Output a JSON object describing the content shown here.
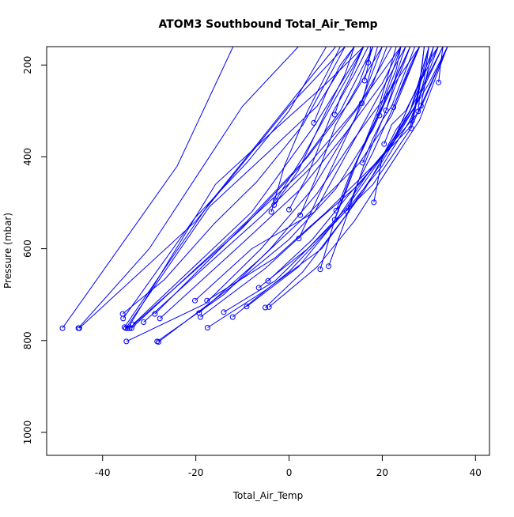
{
  "chart_data": {
    "type": "line",
    "title": "ATOM3 Southbound Total_Air_Temp",
    "xlabel": "Total_Air_Temp",
    "ylabel": "Pressure (mbar)",
    "xlim": [
      -52,
      43
    ],
    "ylim": [
      1050,
      160
    ],
    "y_reversed": true,
    "xticks": [
      -40,
      -20,
      0,
      20,
      40
    ],
    "yticks": [
      200,
      400,
      600,
      800,
      1000
    ],
    "grid": false,
    "marker": "open-circle",
    "color": "#0000ff",
    "series": [
      {
        "points": [
          [
            -48.6,
            773
          ],
          [
            -24,
            420
          ],
          [
            -12,
            160
          ]
        ]
      },
      {
        "points": [
          [
            -45.2,
            773
          ],
          [
            -30,
            600
          ],
          [
            -10,
            290
          ],
          [
            2,
            160
          ]
        ]
      },
      {
        "points": [
          [
            -45,
            773
          ],
          [
            -20,
            540
          ],
          [
            0,
            290
          ],
          [
            12,
            160
          ]
        ]
      },
      {
        "points": [
          [
            -35.7,
            742
          ],
          [
            -26.7,
            667
          ],
          [
            -16,
            545
          ],
          [
            -7,
            455
          ],
          [
            3,
            330
          ],
          [
            12,
            160
          ]
        ]
      },
      {
        "points": [
          [
            -35.6,
            752
          ],
          [
            -20.3,
            534
          ],
          [
            -9,
            412
          ],
          [
            0,
            300
          ],
          [
            8,
            160
          ]
        ]
      },
      {
        "points": [
          [
            -35.3,
            771
          ],
          [
            -17.3,
            504
          ],
          [
            -7,
            374
          ],
          [
            2,
            260
          ],
          [
            10,
            160
          ]
        ]
      },
      {
        "points": [
          [
            -35,
            773
          ],
          [
            -17.1,
            509
          ],
          [
            -5,
            395
          ],
          [
            6,
            290
          ],
          [
            14,
            160
          ]
        ]
      },
      {
        "points": [
          [
            -34.6,
            773
          ],
          [
            -15.8,
            460
          ],
          [
            -3,
            340
          ],
          [
            8,
            240
          ],
          [
            16,
            160
          ]
        ]
      },
      {
        "points": [
          [
            -34.9,
            802
          ],
          [
            -18,
            720
          ],
          [
            -6,
            600
          ],
          [
            5,
            470
          ],
          [
            14,
            320
          ],
          [
            20,
            160
          ]
        ]
      },
      {
        "points": [
          [
            -34.2,
            773
          ],
          [
            -10,
            555
          ],
          [
            1.9,
            426
          ],
          [
            11,
            300
          ],
          [
            18,
            160
          ]
        ]
      },
      {
        "points": [
          [
            -33.8,
            773
          ],
          [
            -9,
            540
          ],
          [
            4,
            400
          ],
          [
            13,
            280
          ],
          [
            20,
            160
          ]
        ]
      },
      {
        "points": [
          [
            -33.5,
            765
          ],
          [
            -8,
            520
          ],
          [
            5.6,
            330
          ],
          [
            16,
            160
          ]
        ]
      },
      {
        "points": [
          [
            -31.2,
            760
          ],
          [
            -6,
            530
          ],
          [
            6,
            410
          ],
          [
            15,
            290
          ],
          [
            22,
            160
          ]
        ]
      },
      {
        "points": [
          [
            -28.8,
            742
          ],
          [
            -10,
            552
          ],
          [
            3,
            430
          ],
          [
            14,
            300
          ],
          [
            24,
            160
          ]
        ]
      },
      {
        "points": [
          [
            -28.3,
            802
          ],
          [
            -14,
            700
          ],
          [
            -4,
            600
          ],
          [
            6,
            480
          ],
          [
            14,
            360
          ],
          [
            22,
            250
          ],
          [
            28,
            160
          ]
        ]
      },
      {
        "points": [
          [
            -28,
            803
          ],
          [
            -12,
            680
          ],
          [
            0,
            580
          ],
          [
            10,
            470
          ],
          [
            18,
            340
          ],
          [
            26,
            160
          ]
        ]
      },
      {
        "points": [
          [
            -27.7,
            752
          ],
          [
            -9.8,
            586
          ],
          [
            2.5,
            470
          ],
          [
            12,
            350
          ],
          [
            20,
            240
          ],
          [
            24,
            160
          ]
        ]
      },
      {
        "points": [
          [
            -20.2,
            713
          ],
          [
            -8,
            600
          ],
          [
            5.5,
            520
          ],
          [
            12,
            400
          ],
          [
            18,
            290
          ],
          [
            25,
            160
          ]
        ]
      },
      {
        "points": [
          [
            -19.3,
            740
          ],
          [
            -6,
            620
          ],
          [
            5,
            515
          ],
          [
            15,
            415
          ],
          [
            22,
            310
          ],
          [
            28,
            160
          ]
        ]
      },
      {
        "points": [
          [
            -19,
            749
          ],
          [
            -5,
            642
          ],
          [
            6,
            540
          ],
          [
            15,
            460
          ],
          [
            22,
            375
          ],
          [
            29,
            240
          ],
          [
            33,
            160
          ]
        ]
      },
      {
        "points": [
          [
            -17.6,
            713
          ],
          [
            -3,
            620
          ],
          [
            8,
            520
          ],
          [
            18,
            420
          ],
          [
            26,
            335
          ],
          [
            30,
            160
          ]
        ]
      },
      {
        "points": [
          [
            -17.5,
            772
          ],
          [
            -5,
            690
          ],
          [
            7,
            600
          ],
          [
            16,
            475
          ],
          [
            23,
            350
          ],
          [
            30,
            190
          ],
          [
            32,
            160
          ]
        ]
      },
      {
        "points": [
          [
            -12.1,
            749
          ],
          [
            0,
            650
          ],
          [
            12,
            520
          ],
          [
            20,
            420
          ],
          [
            26,
            320
          ],
          [
            32,
            160
          ]
        ]
      },
      {
        "points": [
          [
            -14,
            738
          ],
          [
            -3,
            670
          ],
          [
            8,
            560
          ],
          [
            18,
            460
          ],
          [
            26,
            340
          ],
          [
            34,
            160
          ]
        ]
      },
      {
        "points": [
          [
            -9.1,
            726
          ],
          [
            2,
            640
          ],
          [
            10,
            540
          ],
          [
            18,
            420
          ],
          [
            28,
            300
          ],
          [
            34,
            160
          ]
        ]
      },
      {
        "points": [
          [
            -6.5,
            685
          ],
          [
            4,
            600
          ],
          [
            12,
            515
          ],
          [
            20,
            400
          ],
          [
            27,
            290
          ],
          [
            33,
            160
          ]
        ]
      },
      {
        "points": [
          [
            -4.3,
            727
          ],
          [
            6,
            640
          ],
          [
            14,
            540
          ],
          [
            21,
            430
          ],
          [
            28,
            320
          ],
          [
            34,
            160
          ]
        ]
      },
      {
        "points": [
          [
            -5.1,
            728
          ],
          [
            3,
            650
          ],
          [
            12,
            530
          ],
          [
            20,
            410
          ],
          [
            30,
            240
          ],
          [
            34,
            160
          ]
        ]
      },
      {
        "points": [
          [
            -4.5,
            670
          ],
          [
            5,
            580
          ],
          [
            13,
            480
          ],
          [
            20,
            400
          ],
          [
            26,
            300
          ],
          [
            30,
            160
          ]
        ]
      },
      {
        "points": [
          [
            -3.8,
            520
          ],
          [
            -1,
            420
          ],
          [
            4,
            300
          ],
          [
            9,
            200
          ],
          [
            11,
            160
          ]
        ]
      },
      {
        "points": [
          [
            -3.2,
            505
          ],
          [
            2,
            430
          ],
          [
            8,
            300
          ],
          [
            12,
            220
          ],
          [
            14,
            160
          ]
        ]
      },
      {
        "points": [
          [
            -2.9,
            495
          ],
          [
            3,
            400
          ],
          [
            9,
            290
          ],
          [
            14,
            200
          ],
          [
            16,
            160
          ]
        ]
      },
      {
        "points": [
          [
            0,
            515
          ],
          [
            4,
            440
          ],
          [
            9,
            310
          ],
          [
            14,
            220
          ],
          [
            17,
            160
          ]
        ]
      },
      {
        "points": [
          [
            2.4,
            527
          ],
          [
            6,
            440
          ],
          [
            10,
            330
          ],
          [
            15,
            240
          ],
          [
            18,
            160
          ]
        ]
      },
      {
        "points": [
          [
            2.1,
            578
          ],
          [
            7,
            470
          ],
          [
            13,
            340
          ],
          [
            18,
            240
          ],
          [
            21,
            160
          ]
        ]
      },
      {
        "points": [
          [
            6.7,
            645
          ],
          [
            10,
            530
          ],
          [
            14,
            420
          ],
          [
            19,
            310
          ],
          [
            24,
            160
          ]
        ]
      },
      {
        "points": [
          [
            8.5,
            638
          ],
          [
            12,
            540
          ],
          [
            16,
            420
          ],
          [
            20,
            320
          ],
          [
            26,
            160
          ]
        ]
      },
      {
        "points": [
          [
            9.8,
            537
          ],
          [
            12,
            480
          ],
          [
            15,
            400
          ],
          [
            19,
            300
          ],
          [
            23,
            160
          ]
        ]
      },
      {
        "points": [
          [
            10.1,
            517
          ],
          [
            13,
            440
          ],
          [
            16,
            380
          ],
          [
            20,
            290
          ],
          [
            26,
            160
          ]
        ]
      },
      {
        "points": [
          [
            12.4,
            518
          ],
          [
            15,
            450
          ],
          [
            18,
            390
          ],
          [
            22,
            300
          ],
          [
            28,
            160
          ]
        ]
      },
      {
        "points": [
          [
            15.8,
            413
          ],
          [
            18,
            360
          ],
          [
            20,
            320
          ],
          [
            22,
            290
          ],
          [
            27,
            160
          ]
        ]
      },
      {
        "points": [
          [
            18.2,
            499
          ],
          [
            20,
            400
          ],
          [
            23,
            340
          ],
          [
            26,
            300
          ],
          [
            31,
            160
          ]
        ]
      },
      {
        "points": [
          [
            20.4,
            372
          ],
          [
            22,
            330
          ],
          [
            25,
            300
          ],
          [
            28,
            240
          ],
          [
            32,
            160
          ]
        ]
      },
      {
        "points": [
          [
            9.8,
            308
          ],
          [
            11,
            270
          ],
          [
            13,
            230
          ],
          [
            16,
            160
          ]
        ]
      },
      {
        "points": [
          [
            5.3,
            326
          ],
          [
            8,
            260
          ],
          [
            11,
            200
          ],
          [
            14,
            160
          ]
        ]
      },
      {
        "points": [
          [
            17,
            195
          ],
          [
            17.5,
            175
          ],
          [
            18,
            160
          ]
        ]
      },
      {
        "points": [
          [
            16.2,
            234
          ],
          [
            17,
            200
          ],
          [
            17.5,
            160
          ]
        ]
      },
      {
        "points": [
          [
            15.6,
            283
          ],
          [
            17,
            230
          ],
          [
            19,
            160
          ]
        ]
      },
      {
        "points": [
          [
            26.2,
            338
          ],
          [
            27,
            300
          ],
          [
            28,
            250
          ],
          [
            29,
            160
          ]
        ]
      },
      {
        "points": [
          [
            28.3,
            289
          ],
          [
            29,
            250
          ],
          [
            30,
            200
          ],
          [
            31,
            160
          ]
        ]
      },
      {
        "points": [
          [
            32.1,
            238
          ],
          [
            32.5,
            200
          ],
          [
            33,
            160
          ]
        ]
      },
      {
        "points": [
          [
            22.4,
            292
          ],
          [
            24,
            250
          ],
          [
            26,
            200
          ],
          [
            28,
            160
          ]
        ]
      },
      {
        "points": [
          [
            19.4,
            310
          ],
          [
            21,
            260
          ],
          [
            23,
            210
          ],
          [
            24,
            160
          ]
        ]
      },
      {
        "points": [
          [
            20.8,
            299
          ],
          [
            22,
            260
          ],
          [
            23,
            220
          ],
          [
            25,
            160
          ]
        ]
      },
      {
        "points": [
          [
            26.4,
            321
          ],
          [
            27,
            290
          ],
          [
            28,
            240
          ],
          [
            29,
            160
          ]
        ]
      },
      {
        "points": [
          [
            27.7,
            301
          ],
          [
            28,
            270
          ],
          [
            29,
            230
          ],
          [
            30,
            160
          ]
        ]
      }
    ]
  }
}
